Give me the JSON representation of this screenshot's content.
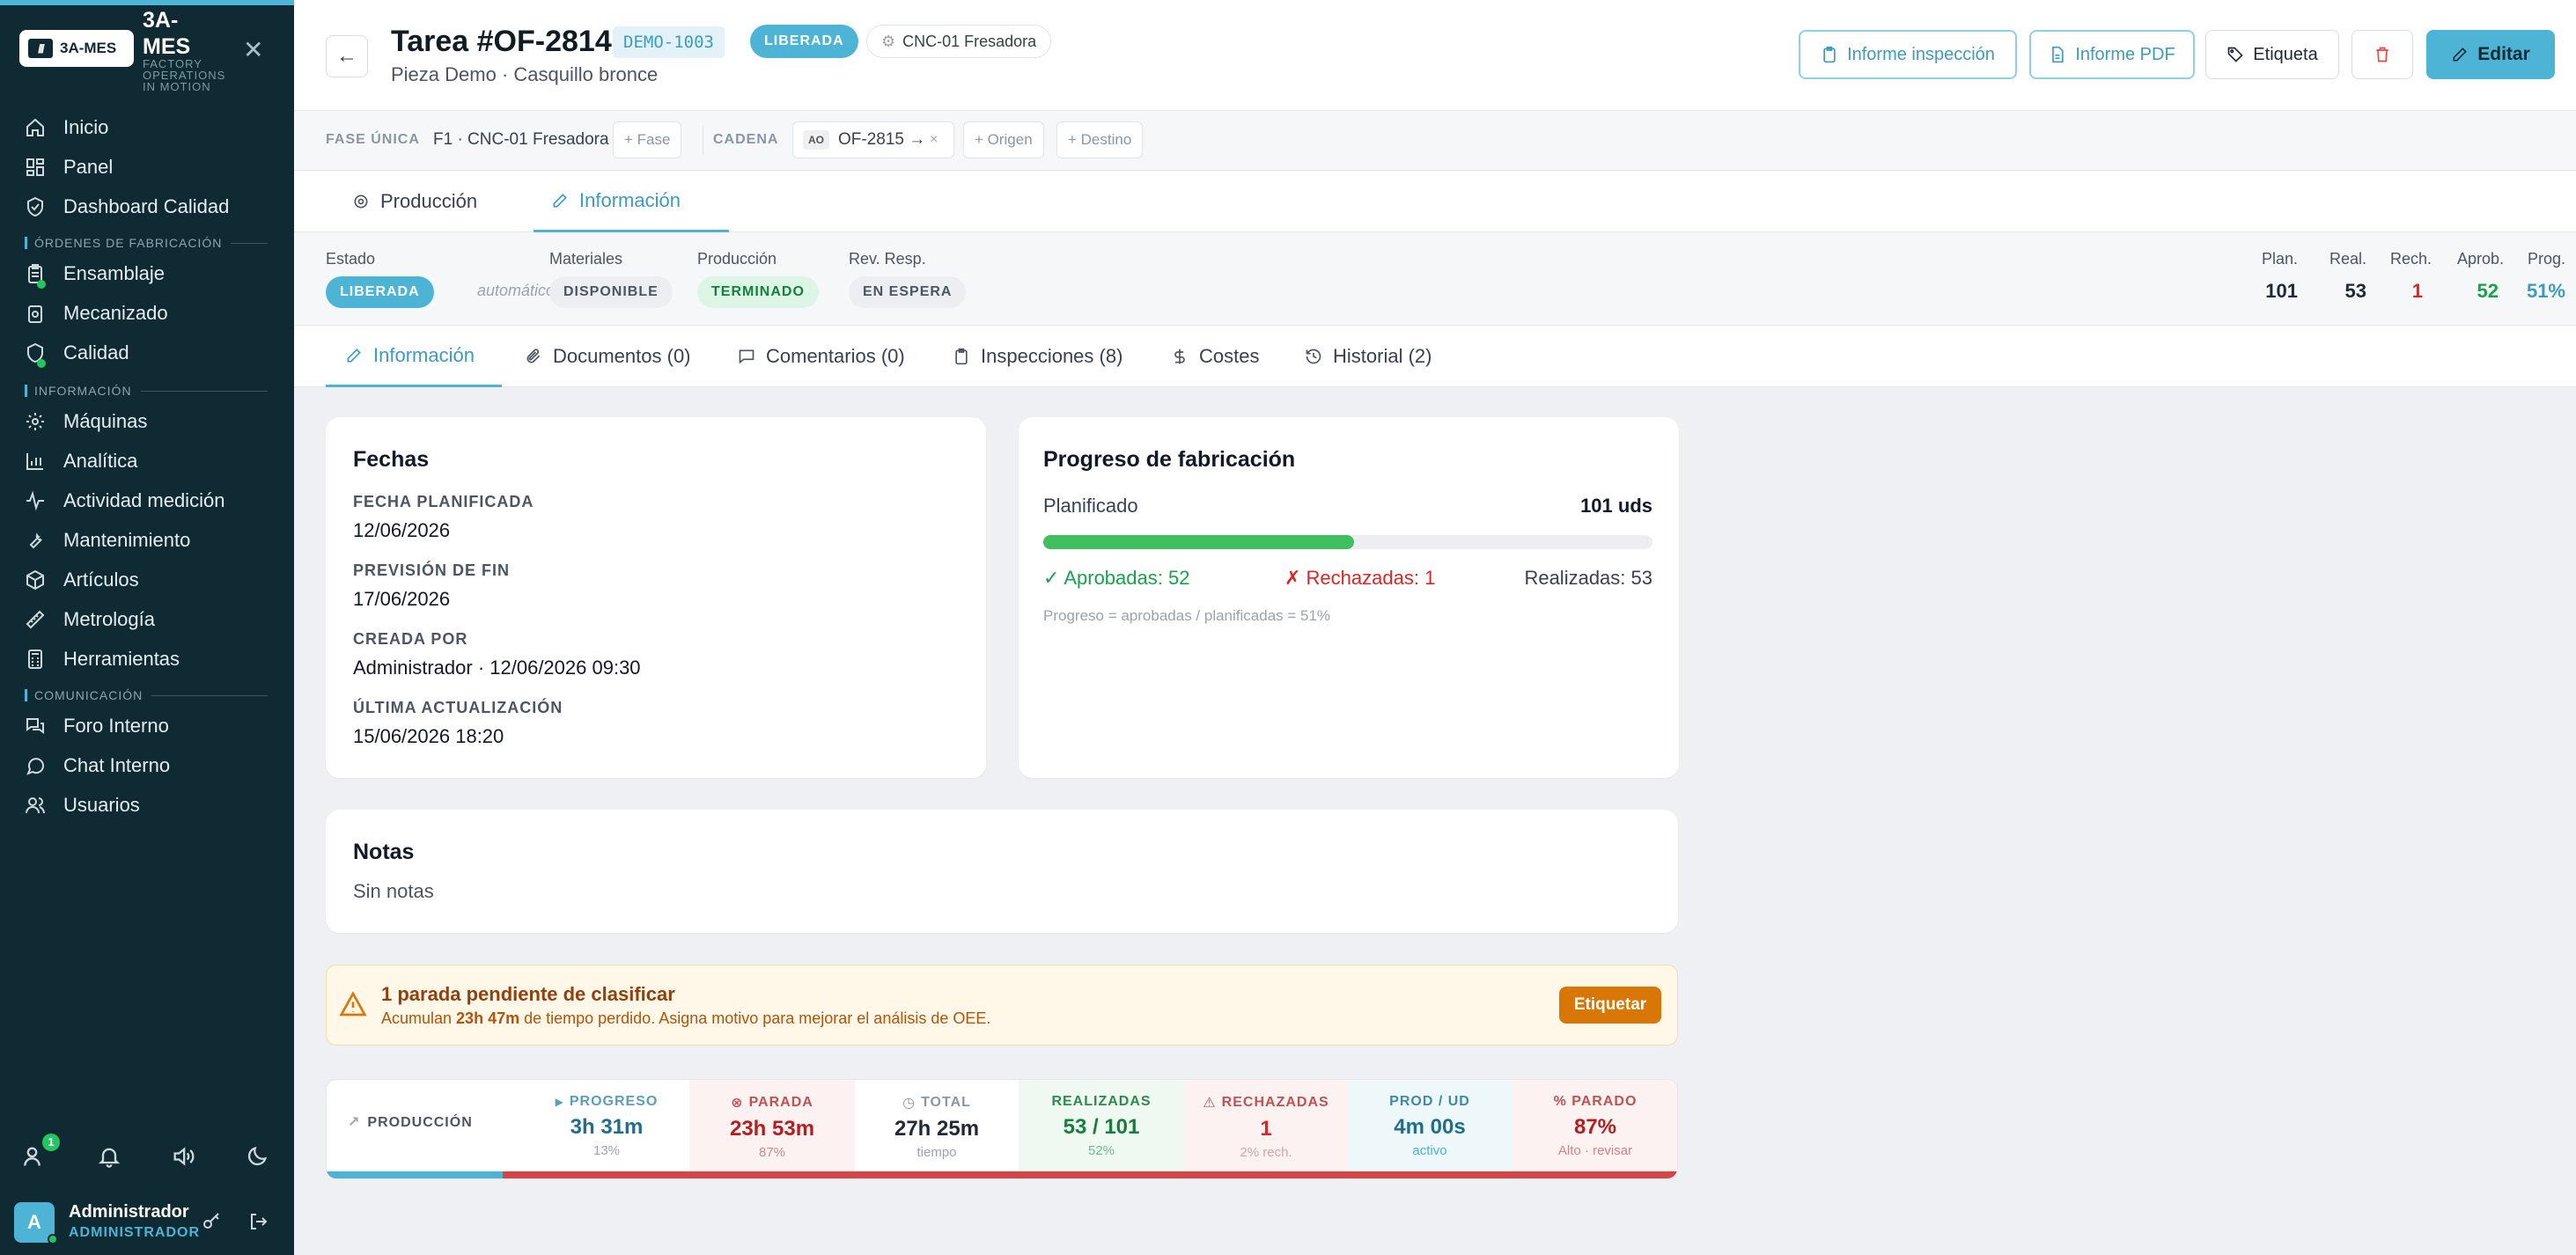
{
  "sidebar": {
    "logo_text": "3A-MES",
    "brand_name": "3A-MES",
    "brand_tagline": "FACTORY OPERATIONS IN MOTION",
    "items_main": [
      {
        "label": "Inicio",
        "icon": "home-icon"
      },
      {
        "label": "Panel",
        "icon": "grid-icon"
      },
      {
        "label": "Dashboard Calidad",
        "icon": "shield-icon"
      }
    ],
    "section_orders": "ÓRDENES DE FABRICACIÓN",
    "items_orders": [
      {
        "label": "Ensamblaje",
        "icon": "clipboard-icon"
      },
      {
        "label": "Mecanizado",
        "icon": "cog-icon"
      },
      {
        "label": "Calidad",
        "icon": "shield-check-icon"
      }
    ],
    "section_info": "INFORMACIÓN",
    "items_info": [
      {
        "label": "Máquinas",
        "icon": "gear-icon"
      },
      {
        "label": "Analítica",
        "icon": "bar-chart-icon"
      },
      {
        "label": "Actividad medición",
        "icon": "activity-icon"
      },
      {
        "label": "Mantenimiento",
        "icon": "wrench-icon"
      },
      {
        "label": "Artículos",
        "icon": "box-icon"
      },
      {
        "label": "Metrología",
        "icon": "ruler-icon"
      },
      {
        "label": "Herramientas",
        "icon": "calculator-icon"
      }
    ],
    "section_comm": "COMUNICACIÓN",
    "items_comm": [
      {
        "label": "Foro Interno",
        "icon": "forum-icon"
      },
      {
        "label": "Chat Interno",
        "icon": "chat-icon"
      },
      {
        "label": "Usuarios",
        "icon": "users-icon"
      }
    ],
    "users_badge": "1",
    "user_initial": "A",
    "user_name": "Administrador",
    "user_role": "ADMINISTRADOR"
  },
  "header": {
    "title": "Tarea #OF-2814",
    "code": "DEMO-1003",
    "status": "LIBERADA",
    "machine": "CNC-01 Fresadora",
    "subtitle": "Pieza Demo · Casquillo bronce",
    "btn_inspection": "Informe inspección",
    "btn_pdf": "Informe PDF",
    "btn_label": "Etiqueta",
    "btn_edit": "Editar"
  },
  "phasebar": {
    "phase_label": "FASE ÚNICA",
    "phase_value": "F1 · CNC-01 Fresadora",
    "add_phase": "+ Fase",
    "chain_label": "CADENA",
    "chain_tag": "AO",
    "chain_value": "OF-2815 →",
    "chain_close": "×",
    "add_origin": "+ Origen",
    "add_dest": "+ Destino"
  },
  "tabs_top": [
    {
      "label": "Producción",
      "icon": "gear-icon"
    },
    {
      "label": "Información",
      "icon": "pencil-icon"
    }
  ],
  "status": {
    "estado_label": "Estado",
    "estado_value": "LIBERADA",
    "estado_mode": "automático",
    "materiales_label": "Materiales",
    "materiales_value": "DISPONIBLE",
    "produccion_label": "Producción",
    "produccion_value": "TERMINADO",
    "rev_label": "Rev. Resp.",
    "rev_value": "EN ESPERA",
    "kpis": [
      {
        "label": "Plan.",
        "value": "101",
        "color": "#1f2937"
      },
      {
        "label": "Real.",
        "value": "53",
        "color": "#1f2937"
      },
      {
        "label": "Rech.",
        "value": "1",
        "color": "#dc2626"
      },
      {
        "label": "Aprob.",
        "value": "52",
        "color": "#16a34a"
      },
      {
        "label": "Prog.",
        "value": "51%",
        "color": "#3c9bc0"
      }
    ]
  },
  "tabs_sub": [
    {
      "label": "Información",
      "icon": "pencil-icon"
    },
    {
      "label": "Documentos (0)",
      "icon": "paperclip-icon"
    },
    {
      "label": "Comentarios (0)",
      "icon": "comment-icon"
    },
    {
      "label": "Inspecciones (8)",
      "icon": "clipboard-icon"
    },
    {
      "label": "Costes",
      "icon": "dollar-icon"
    },
    {
      "label": "Historial (2)",
      "icon": "history-icon"
    }
  ],
  "fechas": {
    "title": "Fechas",
    "fields": [
      {
        "label": "FECHA PLANIFICADA",
        "value": "12/06/2026"
      },
      {
        "label": "PREVISIÓN DE FIN",
        "value": "17/06/2026"
      },
      {
        "label": "CREADA POR",
        "value": "Administrador · 12/06/2026 09:30"
      },
      {
        "label": "ÚLTIMA ACTUALIZACIÓN",
        "value": "15/06/2026 18:20"
      }
    ]
  },
  "progreso": {
    "title": "Progreso de fabricación",
    "planned_label": "Planificado",
    "planned_value": "101 uds",
    "progress_fraction": 0.51,
    "approved": "✓ Aprobadas: 52",
    "rejected": "✗ Rechazadas: 1",
    "done": "Realizadas: 53",
    "formula": "Progreso = aprobadas / planificadas = 51%"
  },
  "notas": {
    "title": "Notas",
    "text": "Sin notas"
  },
  "alert": {
    "title": "1 parada pendiente de clasificar",
    "text_pre": "Acumulan ",
    "text_bold": "23h 47m",
    "text_post": " de tiempo perdido. Asigna motivo para mejorar el análisis de OEE.",
    "button": "Etiquetar"
  },
  "production_strip": {
    "label": "PRODUCCIÓN",
    "cells": [
      {
        "label": "PROGRESO",
        "value": "3h 31m",
        "sub": "13%"
      },
      {
        "label": "PARADA",
        "value": "23h 53m",
        "sub": "87%"
      },
      {
        "label": "TOTAL",
        "value": "27h 25m",
        "sub": "tiempo"
      },
      {
        "label": "REALIZADAS",
        "value": "53 / 101",
        "sub": "52%"
      },
      {
        "label": "RECHAZADAS",
        "value": "1",
        "sub": "2% rech."
      },
      {
        "label": "PROD / UD",
        "value": "4m 00s",
        "sub": "activo"
      },
      {
        "label": "% PARADO",
        "value": "87%",
        "sub": "Alto · revisar"
      }
    ],
    "progress_fraction": 0.13
  },
  "colors": {
    "accent": "#4db4d6",
    "sidebar_bg": "#0f2a33",
    "success": "#16a34a",
    "danger": "#dc2626",
    "warning": "#d97706"
  }
}
